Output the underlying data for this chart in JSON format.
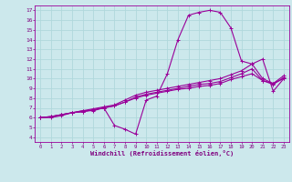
{
  "background_color": "#cce8ec",
  "line_color": "#990099",
  "grid_color": "#b0d8dc",
  "xlabel": "Windchill (Refroidissement éolien,°C)",
  "xlabel_color": "#800080",
  "tick_color": "#800080",
  "xlim": [
    -0.5,
    23.5
  ],
  "ylim": [
    3.5,
    17.5
  ],
  "xticks": [
    0,
    1,
    2,
    3,
    4,
    5,
    6,
    7,
    8,
    9,
    10,
    11,
    12,
    13,
    14,
    15,
    16,
    17,
    18,
    19,
    20,
    21,
    22,
    23
  ],
  "yticks": [
    4,
    5,
    6,
    7,
    8,
    9,
    10,
    11,
    12,
    13,
    14,
    15,
    16,
    17
  ],
  "series": [
    [
      6.0,
      6.0,
      6.2,
      6.5,
      6.7,
      6.7,
      7.0,
      5.2,
      4.8,
      4.3,
      7.8,
      8.2,
      10.5,
      14.0,
      16.5,
      16.8,
      17.0,
      16.8,
      15.2,
      11.8,
      11.5,
      12.0,
      8.7,
      10.0
    ],
    [
      6.0,
      6.1,
      6.3,
      6.5,
      6.6,
      6.8,
      7.0,
      7.2,
      7.6,
      8.0,
      8.3,
      8.5,
      8.7,
      8.9,
      9.0,
      9.2,
      9.3,
      9.5,
      9.9,
      10.2,
      10.5,
      9.8,
      9.5,
      10.0
    ],
    [
      6.0,
      6.1,
      6.3,
      6.5,
      6.6,
      6.8,
      7.0,
      7.2,
      7.6,
      8.1,
      8.4,
      8.6,
      8.8,
      9.0,
      9.2,
      9.4,
      9.5,
      9.7,
      10.1,
      10.5,
      11.0,
      9.8,
      9.4,
      10.1
    ],
    [
      6.0,
      6.1,
      6.3,
      6.5,
      6.7,
      6.9,
      7.1,
      7.3,
      7.8,
      8.3,
      8.6,
      8.8,
      9.0,
      9.2,
      9.4,
      9.6,
      9.8,
      10.0,
      10.4,
      10.8,
      11.5,
      10.0,
      9.5,
      10.3
    ]
  ]
}
